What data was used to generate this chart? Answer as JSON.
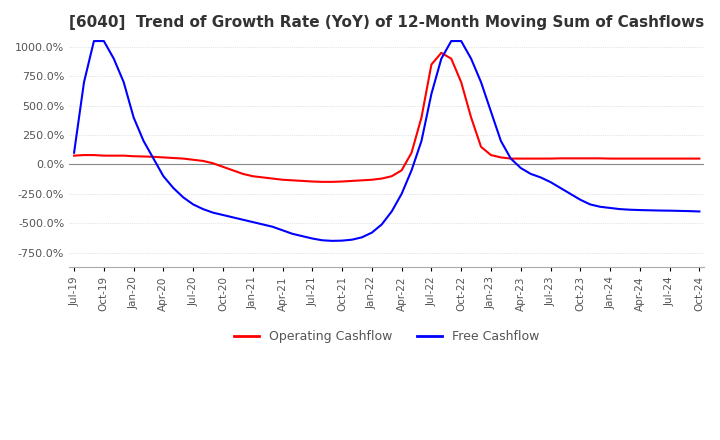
{
  "title": "[6040]  Trend of Growth Rate (YoY) of 12-Month Moving Sum of Cashflows",
  "title_fontsize": 11,
  "ylim": [
    -875,
    1075
  ],
  "yticks": [
    -750,
    -500,
    -250,
    0,
    250,
    500,
    750,
    1000
  ],
  "legend_labels": [
    "Operating Cashflow",
    "Free Cashflow"
  ],
  "colors": [
    "#FF0000",
    "#0000FF"
  ],
  "operating_cashflow": {
    "x": [
      0,
      1,
      2,
      3,
      4,
      5,
      6,
      7,
      8,
      9,
      10,
      11,
      12,
      13,
      14,
      15,
      16,
      17,
      18,
      19,
      20,
      21,
      22,
      23,
      24,
      25,
      26,
      27,
      28,
      29,
      30,
      31,
      32,
      33,
      34,
      35,
      36,
      37,
      38,
      39,
      40,
      41,
      42,
      43,
      44,
      45,
      46,
      47,
      48,
      49,
      50,
      51,
      52,
      53,
      54,
      55,
      56,
      57,
      58,
      59,
      60,
      61,
      62,
      63
    ],
    "values": [
      75,
      80,
      80,
      75,
      75,
      75,
      70,
      68,
      65,
      60,
      55,
      50,
      40,
      30,
      10,
      -20,
      -50,
      -80,
      -100,
      -110,
      -120,
      -130,
      -135,
      -140,
      -145,
      -148,
      -148,
      -145,
      -140,
      -135,
      -130,
      -120,
      -100,
      -50,
      100,
      400,
      850,
      950,
      900,
      700,
      400,
      150,
      80,
      60,
      50,
      50,
      50,
      50,
      50,
      52,
      52,
      52,
      52,
      52,
      50,
      50,
      50,
      50,
      50,
      50,
      50,
      50,
      50,
      50
    ]
  },
  "free_cashflow": {
    "x": [
      0,
      1,
      2,
      3,
      4,
      5,
      6,
      7,
      8,
      9,
      10,
      11,
      12,
      13,
      14,
      15,
      16,
      17,
      18,
      19,
      20,
      21,
      22,
      23,
      24,
      25,
      26,
      27,
      28,
      29,
      30,
      31,
      32,
      33,
      34,
      35,
      36,
      37,
      38,
      39,
      40,
      41,
      42,
      43,
      44,
      45,
      46,
      47,
      48,
      49,
      50,
      51,
      52,
      53,
      54,
      55,
      56,
      57,
      58,
      59,
      60,
      61,
      62,
      63
    ],
    "values": [
      100,
      700,
      1050,
      1050,
      900,
      700,
      400,
      200,
      50,
      -100,
      -200,
      -280,
      -340,
      -380,
      -410,
      -430,
      -450,
      -470,
      -490,
      -510,
      -530,
      -560,
      -590,
      -610,
      -630,
      -645,
      -650,
      -648,
      -640,
      -620,
      -580,
      -510,
      -400,
      -250,
      -50,
      200,
      600,
      900,
      1050,
      1050,
      900,
      700,
      450,
      200,
      50,
      -30,
      -80,
      -110,
      -150,
      -200,
      -250,
      -300,
      -340,
      -360,
      -370,
      -380,
      -385,
      -388,
      -390,
      -392,
      -393,
      -395,
      -397,
      -400
    ]
  },
  "xtick_labels": [
    "Jul-19",
    "Oct-19",
    "Jan-20",
    "Apr-20",
    "Jul-20",
    "Oct-20",
    "Jan-21",
    "Apr-21",
    "Jul-21",
    "Oct-21",
    "Jan-22",
    "Apr-22",
    "Jul-22",
    "Oct-22",
    "Jan-23",
    "Apr-23",
    "Jul-23",
    "Oct-23",
    "Jan-24",
    "Apr-24",
    "Jul-24",
    "Oct-24"
  ],
  "xtick_positions": [
    0,
    3,
    6,
    9,
    12,
    15,
    18,
    21,
    24,
    27,
    30,
    33,
    36,
    39,
    42,
    45,
    48,
    51,
    54,
    57,
    60,
    63
  ],
  "background_color": "#FFFFFF",
  "grid_color": "#CCCCCC",
  "text_color": "#555555"
}
